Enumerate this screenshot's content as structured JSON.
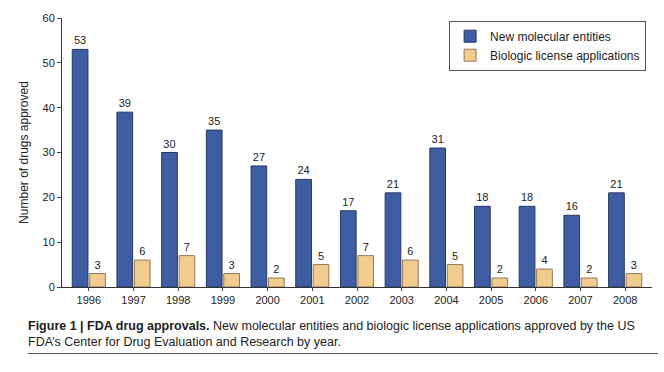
{
  "chart_data": {
    "type": "bar",
    "y_label": "Number of drugs approved",
    "annotations": [
      "Figure 1 | FDA drug approvals.",
      "New molecular entities and biologic license applications approved by the US FDA’s Center for Drug Evaluation and Research by year."
    ],
    "categories": [
      "1996",
      "1997",
      "1998",
      "1999",
      "2000",
      "2001",
      "2002",
      "2003",
      "2004",
      "2005",
      "2006",
      "2007",
      "2008"
    ],
    "series": [
      {
        "name": "New molecular entities",
        "color": "#3f5da3",
        "values": [
          53,
          39,
          30,
          35,
          27,
          24,
          17,
          21,
          31,
          18,
          18,
          16,
          21
        ]
      },
      {
        "name": "Biologic license applications",
        "color": "#f2cc8f",
        "values": [
          3,
          6,
          7,
          3,
          2,
          5,
          7,
          6,
          5,
          2,
          4,
          2,
          3
        ]
      }
    ],
    "ylim": [
      0,
      60
    ],
    "yticks": [
      0,
      10,
      20,
      30,
      40,
      50,
      60
    ],
    "grid": false,
    "legend": "top-right",
    "data_labels": true
  }
}
